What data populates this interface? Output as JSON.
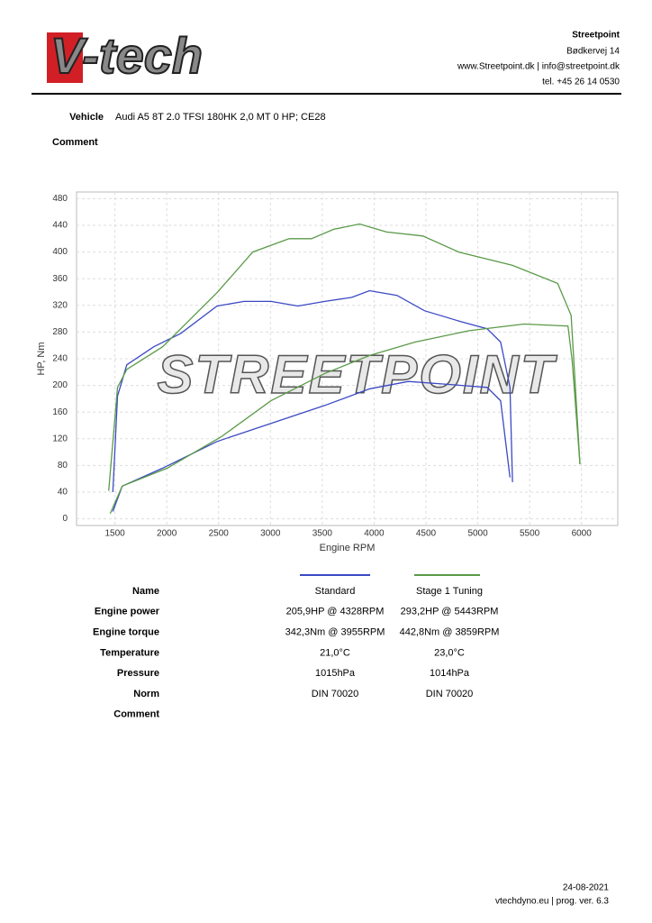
{
  "header": {
    "logo": "V-tech",
    "company": "Streetpoint",
    "address": "Bødkervej 14",
    "contact": "www.Streetpoint.dk | info@streetpoint.dk",
    "phone": "tel. +45 26 14 0530"
  },
  "vehicle": {
    "label": "Vehicle",
    "value": "Audi A5 8T 2.0 TFSI 180HK 2,0 MT 0 HP; CE28"
  },
  "comment": {
    "label": "Comment"
  },
  "chart_data": {
    "type": "line",
    "watermark": "STREETPOINT",
    "x_label": "Engine RPM",
    "y_label": "HP, Nm",
    "xlim": [
      1130,
      6350
    ],
    "ylim": [
      -10,
      490
    ],
    "xticks": [
      1500,
      2000,
      2500,
      3000,
      3500,
      4000,
      4500,
      5000,
      5500,
      6000
    ],
    "yticks": [
      0,
      40,
      80,
      120,
      160,
      200,
      240,
      280,
      320,
      360,
      400,
      440,
      480
    ],
    "grid": true,
    "series": [
      {
        "color": "#3b49c4",
        "x": [
          1480,
          1525,
          1615,
          1875,
          2135,
          2485,
          2745,
          3005,
          3265,
          3525,
          3785,
          3955,
          4220,
          4485,
          4830,
          5090,
          5220,
          5310,
          5335
        ],
        "values": [
          40,
          184,
          231,
          258,
          278,
          319,
          326,
          326,
          319,
          326,
          332,
          342,
          335,
          312,
          296,
          285,
          265,
          197,
          55
        ]
      },
      {
        "color": "#3b49c4",
        "x": [
          1480,
          1570,
          1960,
          2485,
          3005,
          3525,
          3960,
          4330,
          4765,
          5090,
          5220,
          5310
        ],
        "values": [
          11,
          49,
          76,
          116,
          143,
          170,
          195,
          206,
          201,
          197,
          177,
          62
        ]
      },
      {
        "color": "#5a9a48",
        "x": [
          1440,
          1525,
          1615,
          1960,
          2485,
          2830,
          3180,
          3395,
          3610,
          3860,
          4120,
          4470,
          4815,
          5335,
          5770,
          5900,
          5985
        ],
        "values": [
          42,
          197,
          224,
          258,
          339,
          400,
          420,
          420,
          434,
          442,
          430,
          424,
          400,
          380,
          353,
          305,
          82
        ]
      },
      {
        "color": "#5a9a48",
        "x": [
          1455,
          1570,
          2005,
          2525,
          3005,
          3525,
          3960,
          4395,
          4915,
          5445,
          5870,
          5910,
          5985
        ],
        "values": [
          8,
          49,
          76,
          123,
          177,
          218,
          245,
          265,
          282,
          292,
          289,
          238,
          82
        ]
      }
    ]
  },
  "table": {
    "rows": [
      [
        "Name",
        "Standard",
        "Stage 1 Tuning"
      ],
      [
        "Engine power",
        "205,9HP @ 4328RPM",
        "293,2HP @ 5443RPM"
      ],
      [
        "Engine torque",
        "342,3Nm @ 3955RPM",
        "442,8Nm @ 3859RPM"
      ],
      [
        "Temperature",
        "21,0°C",
        "23,0°C"
      ],
      [
        "Pressure",
        "1015hPa",
        "1014hPa"
      ],
      [
        "Norm",
        "DIN 70020",
        "DIN 70020"
      ],
      [
        "Comment"
      ]
    ]
  },
  "footer": {
    "date": "24-08-2021",
    "version": "vtechdyno.eu | prog. ver. 6.3"
  }
}
